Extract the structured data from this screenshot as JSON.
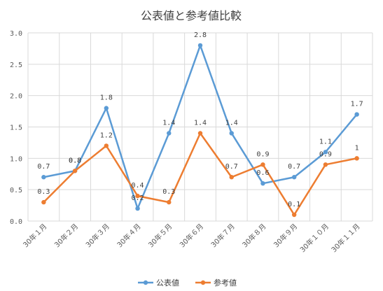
{
  "chart_data": {
    "type": "line",
    "title": "公表値と参考値比較",
    "categories": [
      "30年１月",
      "30年２月",
      "30年３月",
      "30年４月",
      "30年５月",
      "30年６月",
      "30年７月",
      "30年８月",
      "30年９月",
      "30年１０月",
      "30年１１月"
    ],
    "series": [
      {
        "name": "公表値",
        "color": "#5b9bd5",
        "values": [
          0.7,
          0.8,
          1.8,
          0.2,
          1.4,
          2.8,
          1.4,
          0.6,
          0.7,
          1.1,
          1.7
        ],
        "labels": [
          "0.7",
          "0.8",
          "1.8",
          "0.2",
          "1.4",
          "2.8",
          "1.4",
          "0.6",
          "0.7",
          "1.1",
          "1.7"
        ]
      },
      {
        "name": "参考値",
        "color": "#ed7d31",
        "values": [
          0.3,
          0.8,
          1.2,
          0.4,
          0.3,
          1.4,
          0.7,
          0.9,
          0.1,
          0.9,
          1.0
        ],
        "labels": [
          "0.3",
          "0.8",
          "1.2",
          "0.4",
          "0.3",
          "1.4",
          "0.7",
          "0.9",
          "0.1",
          "0.9",
          "1"
        ]
      }
    ],
    "ylim": [
      0,
      3
    ],
    "yticks": [
      "0.0",
      "0.5",
      "1.0",
      "1.5",
      "2.0",
      "2.5",
      "3.0"
    ],
    "grid": true,
    "legend_position": "bottom"
  }
}
